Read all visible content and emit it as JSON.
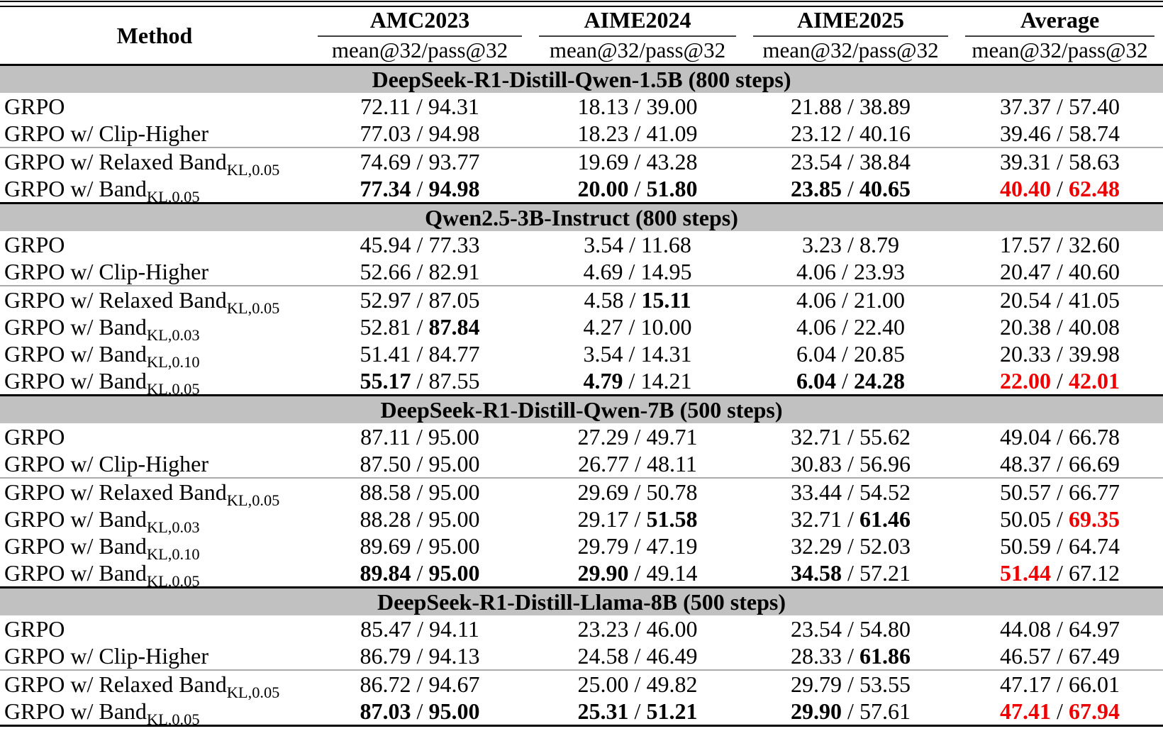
{
  "colors": {
    "highlight": "#ee0000",
    "section_bg": "#c1c1c1"
  },
  "table": {
    "method_header": "Method",
    "metric_subheader": "mean@32/pass@32",
    "groups": [
      "AMC2023",
      "AIME2024",
      "AIME2025",
      "Average"
    ],
    "sections": [
      {
        "title": "DeepSeek-R1-Distill-Qwen-1.5B (800 steps)",
        "rows": [
          {
            "method": "GRPO",
            "sub": "",
            "rule_above": false,
            "cells": [
              [
                "72.11",
                "94.31",
                "n",
                "n"
              ],
              [
                "18.13",
                "39.00",
                "n",
                "n"
              ],
              [
                "21.88",
                "38.89",
                "n",
                "n"
              ],
              [
                "37.37",
                "57.40",
                "n",
                "n"
              ]
            ]
          },
          {
            "method": "GRPO w/ Clip-Higher",
            "sub": "",
            "rule_above": false,
            "cells": [
              [
                "77.03",
                "94.98",
                "n",
                "n"
              ],
              [
                "18.23",
                "41.09",
                "n",
                "n"
              ],
              [
                "23.12",
                "40.16",
                "n",
                "n"
              ],
              [
                "39.46",
                "58.74",
                "n",
                "n"
              ]
            ]
          },
          {
            "method": "GRPO w/ Relaxed Band",
            "sub": "KL,0.05",
            "rule_above": true,
            "cells": [
              [
                "74.69",
                "93.77",
                "n",
                "n"
              ],
              [
                "19.69",
                "43.28",
                "n",
                "n"
              ],
              [
                "23.54",
                "38.84",
                "n",
                "n"
              ],
              [
                "39.31",
                "58.63",
                "n",
                "n"
              ]
            ]
          },
          {
            "method": "GRPO w/ Band",
            "sub": "KL,0.05",
            "rule_above": false,
            "cells": [
              [
                "77.34",
                "94.98",
                "b",
                "b"
              ],
              [
                "20.00",
                "51.80",
                "b",
                "b"
              ],
              [
                "23.85",
                "40.65",
                "b",
                "b"
              ],
              [
                "40.40",
                "62.48",
                "r",
                "r"
              ]
            ]
          }
        ]
      },
      {
        "title": "Qwen2.5-3B-Instruct (800 steps)",
        "rows": [
          {
            "method": "GRPO",
            "sub": "",
            "rule_above": false,
            "cells": [
              [
                "45.94",
                "77.33",
                "n",
                "n"
              ],
              [
                "3.54",
                "11.68",
                "n",
                "n"
              ],
              [
                "3.23",
                "8.79",
                "n",
                "n"
              ],
              [
                "17.57",
                "32.60",
                "n",
                "n"
              ]
            ]
          },
          {
            "method": "GRPO w/ Clip-Higher",
            "sub": "",
            "rule_above": false,
            "cells": [
              [
                "52.66",
                "82.91",
                "n",
                "n"
              ],
              [
                "4.69",
                "14.95",
                "n",
                "n"
              ],
              [
                "4.06",
                "23.93",
                "n",
                "n"
              ],
              [
                "20.47",
                "40.60",
                "n",
                "n"
              ]
            ]
          },
          {
            "method": "GRPO w/ Relaxed Band",
            "sub": "KL,0.05",
            "rule_above": true,
            "cells": [
              [
                "52.97",
                "87.05",
                "n",
                "n"
              ],
              [
                "4.58",
                "15.11",
                "n",
                "b"
              ],
              [
                "4.06",
                "21.00",
                "n",
                "n"
              ],
              [
                "20.54",
                "41.05",
                "n",
                "n"
              ]
            ]
          },
          {
            "method": "GRPO w/ Band",
            "sub": "KL,0.03",
            "rule_above": false,
            "cells": [
              [
                "52.81",
                "87.84",
                "n",
                "b"
              ],
              [
                "4.27",
                "10.00",
                "n",
                "n"
              ],
              [
                "4.06",
                "22.40",
                "n",
                "n"
              ],
              [
                "20.38",
                "40.08",
                "n",
                "n"
              ]
            ]
          },
          {
            "method": "GRPO w/ Band",
            "sub": "KL,0.10",
            "rule_above": false,
            "cells": [
              [
                "51.41",
                "84.77",
                "n",
                "n"
              ],
              [
                "3.54",
                "14.31",
                "n",
                "n"
              ],
              [
                "6.04",
                "20.85",
                "n",
                "n"
              ],
              [
                "20.33",
                "39.98",
                "n",
                "n"
              ]
            ]
          },
          {
            "method": "GRPO w/ Band",
            "sub": "KL,0.05",
            "rule_above": false,
            "cells": [
              [
                "55.17",
                "87.55",
                "b",
                "n"
              ],
              [
                "4.79",
                "14.21",
                "b",
                "n"
              ],
              [
                "6.04",
                "24.28",
                "b",
                "b"
              ],
              [
                "22.00",
                "42.01",
                "r",
                "r"
              ]
            ]
          }
        ]
      },
      {
        "title": "DeepSeek-R1-Distill-Qwen-7B (500 steps)",
        "rows": [
          {
            "method": "GRPO",
            "sub": "",
            "rule_above": false,
            "cells": [
              [
                "87.11",
                "95.00",
                "n",
                "n"
              ],
              [
                "27.29",
                "49.71",
                "n",
                "n"
              ],
              [
                "32.71",
                "55.62",
                "n",
                "n"
              ],
              [
                "49.04",
                "66.78",
                "n",
                "n"
              ]
            ]
          },
          {
            "method": "GRPO w/ Clip-Higher",
            "sub": "",
            "rule_above": false,
            "cells": [
              [
                "87.50",
                "95.00",
                "n",
                "n"
              ],
              [
                "26.77",
                "48.11",
                "n",
                "n"
              ],
              [
                "30.83",
                "56.96",
                "n",
                "n"
              ],
              [
                "48.37",
                "66.69",
                "n",
                "n"
              ]
            ]
          },
          {
            "method": "GRPO w/ Relaxed Band",
            "sub": "KL,0.05",
            "rule_above": true,
            "cells": [
              [
                "88.58",
                "95.00",
                "n",
                "n"
              ],
              [
                "29.69",
                "50.78",
                "n",
                "n"
              ],
              [
                "33.44",
                "54.52",
                "n",
                "n"
              ],
              [
                "50.57",
                "66.77",
                "n",
                "n"
              ]
            ]
          },
          {
            "method": "GRPO w/ Band",
            "sub": "KL,0.03",
            "rule_above": false,
            "cells": [
              [
                "88.28",
                "95.00",
                "n",
                "n"
              ],
              [
                "29.17",
                "51.58",
                "n",
                "b"
              ],
              [
                "32.71",
                "61.46",
                "n",
                "b"
              ],
              [
                "50.05",
                "69.35",
                "n",
                "r"
              ]
            ]
          },
          {
            "method": "GRPO w/ Band",
            "sub": "KL,0.10",
            "rule_above": false,
            "cells": [
              [
                "89.69",
                "95.00",
                "n",
                "n"
              ],
              [
                "29.79",
                "47.19",
                "n",
                "n"
              ],
              [
                "32.29",
                "52.03",
                "n",
                "n"
              ],
              [
                "50.59",
                "64.74",
                "n",
                "n"
              ]
            ]
          },
          {
            "method": "GRPO w/ Band",
            "sub": "KL,0.05",
            "rule_above": false,
            "cells": [
              [
                "89.84",
                "95.00",
                "b",
                "b"
              ],
              [
                "29.90",
                "49.14",
                "b",
                "n"
              ],
              [
                "34.58",
                "57.21",
                "b",
                "n"
              ],
              [
                "51.44",
                "67.12",
                "r",
                "n"
              ]
            ]
          }
        ]
      },
      {
        "title": "DeepSeek-R1-Distill-Llama-8B (500 steps)",
        "rows": [
          {
            "method": "GRPO",
            "sub": "",
            "rule_above": false,
            "cells": [
              [
                "85.47",
                "94.11",
                "n",
                "n"
              ],
              [
                "23.23",
                "46.00",
                "n",
                "n"
              ],
              [
                "23.54",
                "54.80",
                "n",
                "n"
              ],
              [
                "44.08",
                "64.97",
                "n",
                "n"
              ]
            ]
          },
          {
            "method": "GRPO w/ Clip-Higher",
            "sub": "",
            "rule_above": false,
            "cells": [
              [
                "86.79",
                "94.13",
                "n",
                "n"
              ],
              [
                "24.58",
                "46.49",
                "n",
                "n"
              ],
              [
                "28.33",
                "61.86",
                "n",
                "b"
              ],
              [
                "46.57",
                "67.49",
                "n",
                "n"
              ]
            ]
          },
          {
            "method": "GRPO w/ Relaxed Band",
            "sub": "KL,0.05",
            "rule_above": true,
            "cells": [
              [
                "86.72",
                "94.67",
                "n",
                "n"
              ],
              [
                "25.00",
                "49.82",
                "n",
                "n"
              ],
              [
                "29.79",
                "53.55",
                "n",
                "n"
              ],
              [
                "47.17",
                "66.01",
                "n",
                "n"
              ]
            ]
          },
          {
            "method": "GRPO w/ Band",
            "sub": "KL,0.05",
            "rule_above": false,
            "cells": [
              [
                "87.03",
                "95.00",
                "b",
                "b"
              ],
              [
                "25.31",
                "51.21",
                "b",
                "b"
              ],
              [
                "29.90",
                "57.61",
                "b",
                "n"
              ],
              [
                "47.41",
                "67.94",
                "r",
                "r"
              ]
            ]
          }
        ]
      }
    ]
  }
}
